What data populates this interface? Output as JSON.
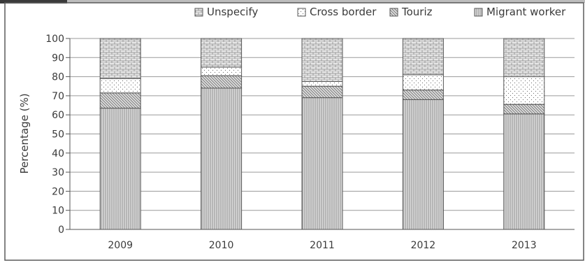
{
  "chart_data": {
    "type": "bar",
    "stacked": true,
    "categories": [
      "2009",
      "2010",
      "2011",
      "2012",
      "2013"
    ],
    "series": [
      {
        "name": "Migrant worker",
        "values": [
          63.5,
          74,
          69,
          68,
          60.5
        ]
      },
      {
        "name": "Touriz",
        "values": [
          8,
          6.5,
          6,
          5,
          5
        ]
      },
      {
        "name": "Cross border",
        "values": [
          7.5,
          4.5,
          2.5,
          8,
          14.5
        ]
      },
      {
        "name": "Unspecify",
        "values": [
          21,
          15,
          22.5,
          19,
          20
        ]
      }
    ],
    "legend_order": [
      "Unspecify",
      "Cross border",
      "Touriz",
      "Migrant worker"
    ],
    "legend_position": "top",
    "ylabel": "Percentage (%)",
    "xlabel": "",
    "ylim": [
      0,
      100
    ],
    "yticks": [
      "0",
      "10",
      "20",
      "30",
      "40",
      "50",
      "60",
      "70",
      "80",
      "90",
      "100"
    ],
    "grid": true
  }
}
